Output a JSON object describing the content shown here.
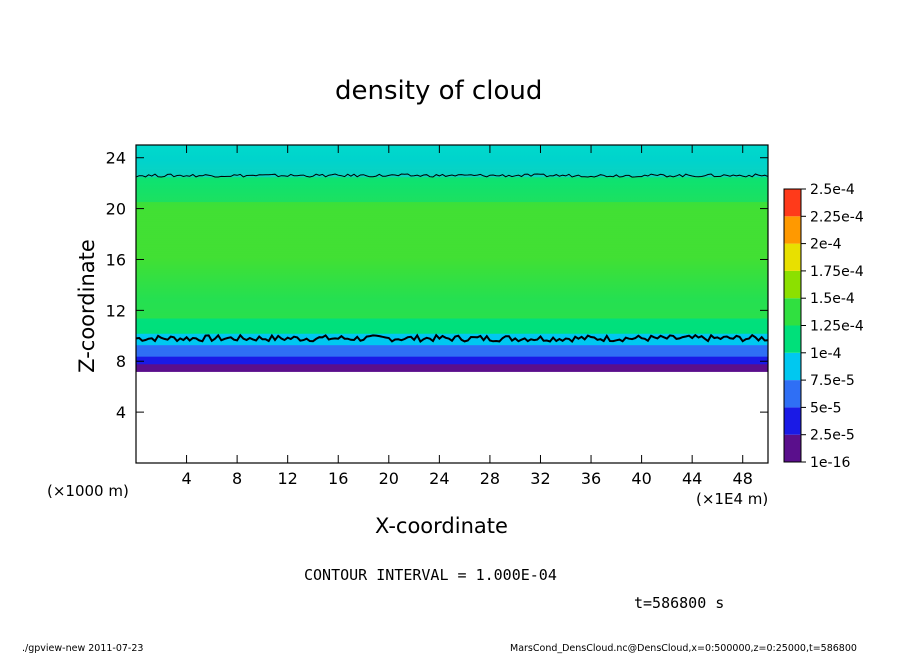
{
  "chart_data": {
    "type": "heatmap",
    "title": "density of cloud",
    "xlabel": "X-coordinate",
    "ylabel": "Z-coordinate",
    "x_unit_left": "(×1000 m)",
    "x_unit_right": "(×1E4 m)",
    "xlim": [
      0,
      50
    ],
    "ylim": [
      0,
      25
    ],
    "x_ticks": [
      4,
      8,
      12,
      16,
      20,
      24,
      28,
      32,
      36,
      40,
      44,
      48
    ],
    "y_ticks": [
      4,
      8,
      12,
      16,
      20,
      24
    ],
    "colorbar": {
      "labels": [
        "1e-16",
        "2.5e-5",
        "5e-5",
        "7.5e-5",
        "1e-4",
        "1.25e-4",
        "1.5e-4",
        "1.75e-4",
        "2e-4",
        "2.25e-4",
        "2.5e-4"
      ],
      "colors": [
        "#5a0f8c",
        "#1a1ae6",
        "#2f6ff5",
        "#00c8f0",
        "#00e07a",
        "#30e040",
        "#8ce000",
        "#e8e000",
        "#ff9900",
        "#ff3a1a",
        "#ff8a8a"
      ]
    },
    "field": {
      "zero_below_z": 7.2,
      "profile": [
        {
          "z": 7.2,
          "value": 1e-16
        },
        {
          "z": 7.7,
          "value": 2e-05
        },
        {
          "z": 8.3,
          "value": 4.5e-05
        },
        {
          "z": 9.0,
          "value": 6.5e-05
        },
        {
          "z": 9.7,
          "value": 8.5e-05
        },
        {
          "z": 10.5,
          "value": 0.00011
        },
        {
          "z": 12.0,
          "value": 0.000135
        },
        {
          "z": 15.0,
          "value": 0.000142
        },
        {
          "z": 18.0,
          "value": 0.00014
        },
        {
          "z": 20.5,
          "value": 0.000125
        },
        {
          "z": 22.5,
          "value": 0.0001
        },
        {
          "z": 25.0,
          "value": 8.5e-05
        }
      ],
      "contour_1e4_levels": [
        9.8,
        22.6
      ]
    }
  },
  "annotation": "CONTOUR INTERVAL = 1.000E-04",
  "time_label": "t=586800 s",
  "footer_left": "./gpview-new  2011-07-23",
  "footer_right": "MarsCond_DensCloud.nc@DensCloud,x=0:500000,z=0:25000,t=586800"
}
